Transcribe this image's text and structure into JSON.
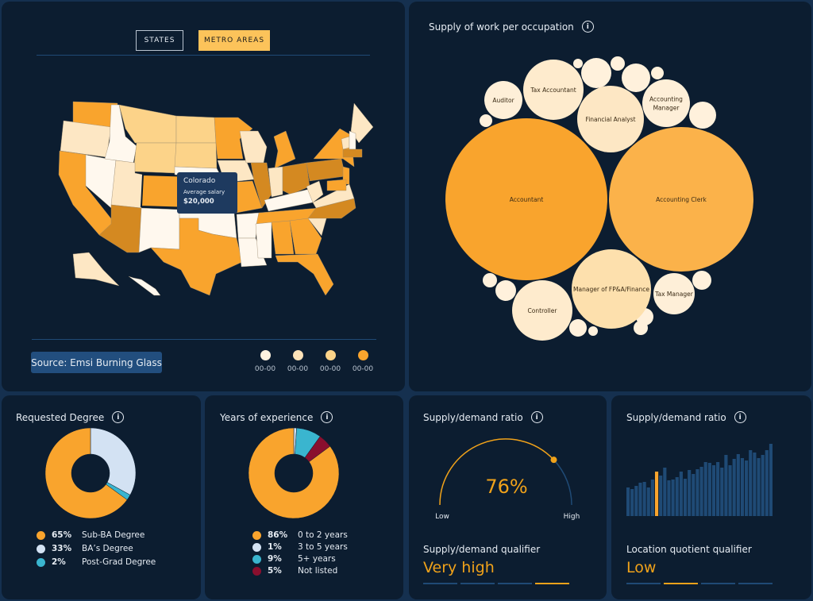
{
  "map_panel": {
    "tabs": [
      {
        "label": "STATES",
        "active": false
      },
      {
        "label": "METRO AREAS",
        "active": true
      }
    ],
    "tooltip": {
      "state": "Colorado",
      "label": "Average salary",
      "value": "$20,000"
    },
    "source": "Source: Emsi Burning Glass",
    "legend": [
      {
        "label": "00-00",
        "color": "#fff3e0"
      },
      {
        "label": "00-00",
        "color": "#fde2b8"
      },
      {
        "label": "00-00",
        "color": "#fcd389"
      },
      {
        "label": "00-00",
        "color": "#f9a42d"
      }
    ],
    "state_colors": {
      "WA": "#f9a42d",
      "OR": "#fde7c4",
      "CA": "#f9a42d",
      "NV": "#fff8ee",
      "ID": "#fff8ee",
      "MT": "#fcd389",
      "WY": "#fcd389",
      "UT": "#fde7c4",
      "CO": "#f9a42d",
      "AZ": "#d48921",
      "NM": "#fff8ee",
      "ND": "#fcd389",
      "SD": "#fcd389",
      "NE": "#fff8ee",
      "KS": "#fde7c4",
      "OK": "#fff8ee",
      "TX": "#f9a42d",
      "MN": "#f9a42d",
      "IA": "#fde7c4",
      "MO": "#f9a42d",
      "AR": "#fff8ee",
      "LA": "#fff8ee",
      "WI": "#fde7c4",
      "IL": "#d48921",
      "MI": "#f9a42d",
      "IN": "#fde7c4",
      "OH": "#d48921",
      "KY": "#fff8ee",
      "TN": "#f9a42d",
      "MS": "#fff8ee",
      "AL": "#f9a42d",
      "GA": "#f9a42d",
      "FL": "#f9a42d",
      "SC": "#fde7c4",
      "NC": "#d48921",
      "VA": "#fde7c4",
      "WV": "#fde7c4",
      "PA": "#d48921",
      "NY": "#f9a42d",
      "ME": "#fde7c4",
      "VT": "#fde7c4",
      "NH": "#fff8ee",
      "MA": "#d48921",
      "NJ": "#f9a42d",
      "MD": "#f9a42d",
      "AK": "#fde7c4",
      "HI": "#fff8ee"
    }
  },
  "bubble_panel": {
    "title": "Supply of work per occupation",
    "bubbles": [
      {
        "label": "Accountant",
        "color": "#f9a42d"
      },
      {
        "label": "Accounting Clerk",
        "color": "#fbb24a"
      },
      {
        "label": "Manager of FP&A/Finance",
        "color": "#fde0ad"
      },
      {
        "label": "Controller",
        "color": "#feebcd"
      },
      {
        "label": "Tax Manager",
        "color": "#feefd8"
      },
      {
        "label": "Financial Analyst",
        "color": "#fde7c4"
      },
      {
        "label": "Tax Accountant",
        "color": "#feebcd"
      },
      {
        "label": "Auditor",
        "color": "#feefd8"
      },
      {
        "label": "Accounting Manager",
        "color": "#feefd8"
      }
    ],
    "small_bubble_color": "#fff1dc"
  },
  "degree": {
    "title": "Requested Degree",
    "items": [
      {
        "pct": "65%",
        "value": 65,
        "label": "Sub-BA Degree",
        "color": "#f9a42d"
      },
      {
        "pct": "33%",
        "value": 33,
        "label": "BA’s Degree",
        "color": "#d3e2f3"
      },
      {
        "pct": "2%",
        "value": 2,
        "label": "Post-Grad Degree",
        "color": "#3ab5cf"
      }
    ]
  },
  "experience": {
    "title": "Years of experience",
    "items": [
      {
        "pct": "86%",
        "value": 86,
        "label": "0 to 2 years",
        "color": "#f9a42d"
      },
      {
        "pct": "1%",
        "value": 1,
        "label": "3 to 5 years",
        "color": "#d3e2f3"
      },
      {
        "pct": "9%",
        "value": 9,
        "label": "5+ years",
        "color": "#3ab5cf"
      },
      {
        "pct": "5%",
        "value": 5,
        "label": "Not listed",
        "color": "#8a0f2e"
      }
    ]
  },
  "gauge": {
    "title": "Supply/demand ratio",
    "value": 76,
    "value_label": "76%",
    "low": "Low",
    "high": "High",
    "qualifier_label": "Supply/demand qualifier",
    "qualifier": "Very high",
    "qualifier_level": 4
  },
  "bars": {
    "title": "Supply/demand ratio",
    "values": [
      36,
      34,
      38,
      42,
      43,
      36,
      46,
      56,
      51,
      61,
      45,
      46,
      49,
      56,
      47,
      58,
      53,
      59,
      62,
      68,
      67,
      64,
      68,
      61,
      77,
      64,
      72,
      78,
      73,
      70,
      83,
      80,
      73,
      77,
      83,
      91
    ],
    "highlight_index": 7,
    "bar_color": "#1f4a75",
    "highlight_color": "#f9a42d",
    "qualifier_label": "Location quotient qualifier",
    "qualifier": "Low",
    "qualifier_level": 2
  }
}
